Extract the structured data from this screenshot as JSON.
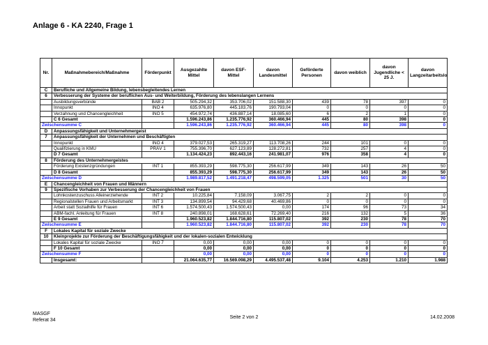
{
  "header": {
    "title": "Anlage 6 - KA 2240, Frage 1"
  },
  "table": {
    "columns": [
      "Nr.",
      "Maßnahmebereich/Maßnahme",
      "Förderpunkt",
      "Ausgezahlte Mittel",
      "davon ESF-Mittel",
      "davon Landesmittel",
      "Geförderte Personen",
      "davon weiblich",
      "davon Jugendliche < 25 J.",
      "davon Langzeitarbeitslose"
    ],
    "sections": [
      {
        "nr": "C",
        "title": "Berufliche und Allgemeine Bildung, lebensbegleitendes Lernen",
        "groups": [
          {
            "nr": "6",
            "title": "Verbesserung der Systeme der beruflichen Aus- und Weiterbildung, Förderung des lebenslangen Lernens",
            "items": [
              {
                "label": "Ausbildungsverbünde",
                "point": "BAB 2",
                "values": [
                  "505.294,32",
                  "353.706,02",
                  "151.588,30",
                  "439",
                  "78",
                  "397",
                  "0"
                ]
              },
              {
                "label": "Innopunkt",
                "point": "INO 4",
                "values": [
                  "635.976,80",
                  "445.183,76",
                  "190.793,04",
                  "0",
                  "0",
                  "0",
                  "0"
                ]
              },
              {
                "label": "Verzahnung und Chancengleichheit",
                "point": "INO 5",
                "values": [
                  "454.972,74",
                  "436.887,14",
                  "18.085,60",
                  "6",
                  "2",
                  "1",
                  "0"
                ]
              }
            ],
            "total": {
              "label": "C 6 Gesamt",
              "values": [
                "1.596.243,86",
                "1.235.776,92",
                "360.466,94",
                "445",
                "80",
                "398",
                "0"
              ]
            }
          }
        ],
        "subtotal": {
          "label": "Zwischensumme C",
          "values": [
            "1.596.243,86",
            "1.235.776,92",
            "360.466,94",
            "445",
            "80",
            "398",
            "0"
          ]
        }
      },
      {
        "nr": "D",
        "title": "Anpassungsfähigkeit und Unternehmergeist",
        "groups": [
          {
            "nr": "7",
            "title": "Anpassungsfähigkeit der Unternehmen und Beschäftigten",
            "items": [
              {
                "label": "Innopunkt",
                "point": "INO 4",
                "values": [
                  "379.027,53",
                  "265.319,27",
                  "113.708,26",
                  "244",
                  "101",
                  "0",
                  "0"
                ]
              },
              {
                "label": "Qualifizierung in KMU",
                "point": "PRÄV 1",
                "values": [
                  "755.396,70",
                  "627.123,89",
                  "128.272,81",
                  "732",
                  "257",
                  "4",
                  "0"
                ]
              }
            ],
            "total": {
              "label": "D 7 Gesamt",
              "values": [
                "1.134.424,23",
                "892.443,16",
                "241.981,07",
                "976",
                "358",
                "4",
                "0"
              ]
            }
          },
          {
            "nr": "8",
            "title": "Förderung des Unternehmergeistes",
            "items": [
              {
                "label": "Förderung Existenzgründungen",
                "point": "INT 1",
                "values": [
                  "855.393,29",
                  "598.775,30",
                  "256.617,99",
                  "349",
                  "143",
                  "26",
                  "50"
                ]
              }
            ],
            "total": {
              "label": "D 8 Gesamt",
              "values": [
                "855.393,29",
                "598.775,30",
                "256.617,99",
                "349",
                "143",
                "26",
                "50"
              ]
            }
          }
        ],
        "subtotal": {
          "label": "Zwischensumme D",
          "values": [
            "1.989.817,52",
            "1.491.218,47",
            "498.599,05",
            "1.325",
            "501",
            "30",
            "50"
          ]
        }
      },
      {
        "nr": "E",
        "title": "Chancengleichheit von Frauen und Männern",
        "groups": [
          {
            "nr": "9",
            "title": "Spezifische Vorhaben zur Verbesserung der Chancengleichheit von Frauen",
            "items": [
              {
                "label": "Lohnkostenzuschuss Alleinerziehende",
                "point": "INT 2",
                "values": [
                  "10.225,84",
                  "7.158,09",
                  "3.067,75",
                  "2",
                  "2",
                  "0",
                  "0"
                ]
              },
              {
                "label": "Regionalstellen Frauen und Arbeitsmarkt",
                "point": "INT 3",
                "values": [
                  "134.899,54",
                  "94.429,68",
                  "40.469,86",
                  "0",
                  "0",
                  "0",
                  "0"
                ]
              },
              {
                "label": "Arbeit statt Sozialhilfe für Frauen",
                "point": "INT 6",
                "values": [
                  "1.574.500,43",
                  "1.574.500,43",
                  "0,00",
                  "174",
                  "96",
                  "73",
                  "34"
                ]
              },
              {
                "label": "ABM-fachl. Anleitung für Frauen",
                "point": "INT 8",
                "values": [
                  "240.898,01",
                  "168.628,61",
                  "72.269,40",
                  "216",
                  "132",
                  "5",
                  "36"
                ]
              }
            ],
            "total": {
              "label": "E 9 Gesamt",
              "values": [
                "1.960.523,82",
                "1.844.716,80",
                "115.807,02",
                "392",
                "230",
                "78",
                "70"
              ]
            }
          }
        ],
        "subtotal": {
          "label": "Zwischensumme E",
          "values": [
            "1.960.523,82",
            "1.844.716,80",
            "115.807,02",
            "392",
            "230",
            "78",
            "70"
          ]
        }
      },
      {
        "nr": "F",
        "title": "Lokales Kapital für soziale Zwecke",
        "groups": [
          {
            "nr": "10",
            "title": "Kleinprojekte zur Förderung der Beschäftigungsfähigkeit und der lokalen-sozialen Entwicklung",
            "items": [
              {
                "label": "Lokales Kapital für soziale Zwecke",
                "point": "INO 7",
                "values": [
                  "0,00",
                  "0,00",
                  "0,00",
                  "0",
                  "0",
                  "0",
                  "0"
                ]
              }
            ],
            "total": {
              "label": "F 10 Gesamt",
              "values": [
                "0,00",
                "0,00",
                "0,00",
                "0",
                "0",
                "0",
                "0"
              ]
            }
          }
        ],
        "subtotal": {
          "label": "Zwischensumme F",
          "values": [
            "0,00",
            "0,00",
            "0,00",
            "0",
            "0",
            "0",
            "0"
          ]
        }
      }
    ],
    "grand_total": {
      "label": "Insgesamt:",
      "values": [
        "21.064.635,77",
        "16.569.098,29",
        "4.495.537,48",
        "9.104",
        "4.253",
        "1.210",
        "1.988"
      ]
    }
  },
  "footer": {
    "org": "MASGF",
    "unit": "Referat 34",
    "page": "Seite 2 von 2",
    "date": "14.02.2008"
  }
}
